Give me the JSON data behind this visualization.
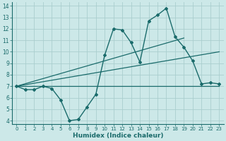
{
  "xlabel": "Humidex (Indice chaleur)",
  "ylabel": "",
  "xlim": [
    -0.5,
    23.5
  ],
  "ylim": [
    3.7,
    14.3
  ],
  "xticks": [
    0,
    1,
    2,
    3,
    4,
    5,
    6,
    7,
    8,
    9,
    10,
    11,
    12,
    13,
    14,
    15,
    16,
    17,
    18,
    19,
    20,
    21,
    22,
    23
  ],
  "yticks": [
    4,
    5,
    6,
    7,
    8,
    9,
    10,
    11,
    12,
    13,
    14
  ],
  "bg_color": "#cce8e8",
  "line_color": "#1a6b6b",
  "grid_color": "#aacece",
  "line1_x": [
    0,
    1,
    2,
    3,
    4,
    5,
    6,
    7,
    8,
    9,
    10,
    11,
    12,
    13,
    14,
    15,
    16,
    17,
    18,
    19,
    20,
    21,
    22,
    23
  ],
  "line1_y": [
    7.0,
    6.7,
    6.7,
    7.0,
    6.8,
    5.8,
    4.0,
    4.1,
    5.2,
    6.3,
    9.7,
    12.0,
    11.9,
    10.8,
    9.1,
    12.7,
    13.2,
    13.8,
    11.3,
    10.4,
    9.2,
    7.2,
    7.3,
    7.2
  ],
  "line2_x": [
    0,
    23
  ],
  "line2_y": [
    7.0,
    7.0
  ],
  "line3_x": [
    0,
    23
  ],
  "line3_y": [
    7.0,
    10.0
  ],
  "line4_x": [
    0,
    19
  ],
  "line4_y": [
    7.0,
    11.2
  ]
}
